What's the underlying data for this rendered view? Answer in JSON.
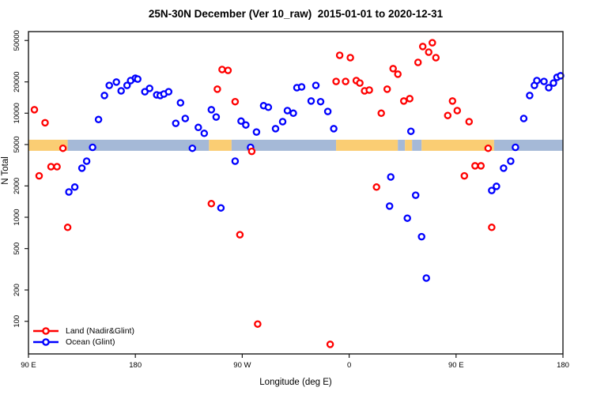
{
  "chart_data": {
    "type": "scatter",
    "title": "25N-30N December (Ver 10_raw)  2015-01-01 to 2020-12-31",
    "xlabel": "Longitude (deg E)",
    "ylabel": "N Total",
    "x_axis": {
      "min": 90,
      "max": 540,
      "ticks": [
        {
          "value": 90,
          "label": "90 E"
        },
        {
          "value": 180,
          "label": "180"
        },
        {
          "value": 270,
          "label": "90 W"
        },
        {
          "value": 360,
          "label": "0"
        },
        {
          "value": 450,
          "label": "90 E"
        },
        {
          "value": 540,
          "label": "180"
        }
      ]
    },
    "y_axis": {
      "scale": "log",
      "min": 50,
      "max": 60000,
      "ticks": [
        {
          "value": 100,
          "label": "100"
        },
        {
          "value": 200,
          "label": "200"
        },
        {
          "value": 500,
          "label": "500"
        },
        {
          "value": 1000,
          "label": "1000"
        },
        {
          "value": 2000,
          "label": "2000"
        },
        {
          "value": 5000,
          "label": "5000"
        },
        {
          "value": 10000,
          "label": "10000"
        },
        {
          "value": 20000,
          "label": "20000"
        },
        {
          "value": 50000,
          "label": "50000"
        }
      ]
    },
    "surface_band": {
      "description": "land/ocean strip along 25N-30N drawn at N ~5000",
      "value_top": 5560,
      "value_bottom": 4350,
      "land_color": "#FACD73",
      "ocean_color": "#A5B9D7",
      "segments": [
        {
          "from": 90,
          "to": 123,
          "type": "land"
        },
        {
          "from": 123,
          "to": 242,
          "type": "ocean"
        },
        {
          "from": 242,
          "to": 261,
          "type": "land"
        },
        {
          "from": 261,
          "to": 349,
          "type": "ocean"
        },
        {
          "from": 349,
          "to": 401,
          "type": "land"
        },
        {
          "from": 401,
          "to": 407,
          "type": "ocean"
        },
        {
          "from": 407,
          "to": 413,
          "type": "land"
        },
        {
          "from": 413,
          "to": 421,
          "type": "ocean"
        },
        {
          "from": 421,
          "to": 482,
          "type": "land"
        },
        {
          "from": 482,
          "to": 540,
          "type": "ocean"
        }
      ]
    },
    "series": [
      {
        "name": "Ocean (Glint)",
        "color": "#0000FF",
        "points": [
          [
            149,
            8700
          ],
          [
            154,
            14800
          ],
          [
            158,
            18500
          ],
          [
            164,
            19900
          ],
          [
            168,
            16400
          ],
          [
            173,
            18500
          ],
          [
            176,
            20600
          ],
          [
            180,
            21700
          ],
          [
            182,
            21300
          ],
          [
            188,
            16100
          ],
          [
            192,
            17300
          ],
          [
            198,
            15000
          ],
          [
            201,
            14800
          ],
          [
            204,
            15300
          ],
          [
            208,
            16100
          ],
          [
            214,
            8000
          ],
          [
            218,
            12600
          ],
          [
            222,
            8900
          ],
          [
            233,
            7300
          ],
          [
            238,
            6400
          ],
          [
            244,
            10800
          ],
          [
            248,
            9200
          ],
          [
            269,
            8400
          ],
          [
            273,
            7700
          ],
          [
            282,
            6600
          ],
          [
            288,
            11800
          ],
          [
            292,
            11400
          ],
          [
            298,
            7100
          ],
          [
            304,
            8300
          ],
          [
            308,
            10600
          ],
          [
            313,
            10000
          ],
          [
            316,
            17600
          ],
          [
            320,
            17900
          ],
          [
            328,
            13100
          ],
          [
            332,
            18500
          ],
          [
            336,
            12900
          ],
          [
            342,
            10400
          ],
          [
            347,
            7100
          ],
          [
            395,
            2440
          ],
          [
            394,
            1280
          ],
          [
            409,
            980
          ],
          [
            412,
            6700
          ],
          [
            416,
            1630
          ],
          [
            421,
            650
          ],
          [
            425,
            260
          ],
          [
            480,
            1810
          ],
          [
            484,
            1980
          ],
          [
            490,
            2960
          ],
          [
            496,
            3460
          ],
          [
            507,
            8900
          ],
          [
            512,
            14800
          ],
          [
            516,
            18500
          ],
          [
            518,
            20600
          ],
          [
            524,
            20200
          ],
          [
            528,
            17600
          ],
          [
            532,
            19500
          ],
          [
            535,
            22100
          ],
          [
            538,
            22900
          ],
          [
            144,
            4700
          ],
          [
            228,
            4600
          ],
          [
            277,
            4700
          ],
          [
            500,
            4700
          ],
          [
            264,
            3460
          ],
          [
            252,
            1230
          ],
          [
            135,
            2960
          ],
          [
            139,
            3460
          ],
          [
            124,
            1750
          ],
          [
            129,
            1950
          ]
        ]
      },
      {
        "name": "Land (Nadir&Glint)",
        "color": "#FF0000",
        "points": [
          [
            95,
            10800
          ],
          [
            104,
            8100
          ],
          [
            119,
            4600
          ],
          [
            109,
            3060
          ],
          [
            114,
            3060
          ],
          [
            99,
            2500
          ],
          [
            123,
            800
          ],
          [
            249,
            17000
          ],
          [
            253,
            26300
          ],
          [
            258,
            25800
          ],
          [
            264,
            12900
          ],
          [
            244,
            1350
          ],
          [
            268,
            680
          ],
          [
            278,
            4300
          ],
          [
            283,
            94
          ],
          [
            344,
            60
          ],
          [
            352,
            36000
          ],
          [
            361,
            34200
          ],
          [
            349,
            20200
          ],
          [
            357,
            20200
          ],
          [
            366,
            20600
          ],
          [
            369,
            19500
          ],
          [
            373,
            16400
          ],
          [
            377,
            16700
          ],
          [
            383,
            1950
          ],
          [
            387,
            10000
          ],
          [
            392,
            17000
          ],
          [
            397,
            26800
          ],
          [
            401,
            23700
          ],
          [
            406,
            13100
          ],
          [
            411,
            13800
          ],
          [
            418,
            30800
          ],
          [
            422,
            43700
          ],
          [
            427,
            38600
          ],
          [
            430,
            47600
          ],
          [
            433,
            34200
          ],
          [
            443,
            9500
          ],
          [
            447,
            13100
          ],
          [
            451,
            10600
          ],
          [
            457,
            2500
          ],
          [
            461,
            8300
          ],
          [
            466,
            3120
          ],
          [
            471,
            3120
          ],
          [
            477,
            4600
          ],
          [
            480,
            800
          ]
        ]
      }
    ],
    "legend": {
      "position": "bottom-left",
      "entries": [
        "Land (Nadir&Glint)",
        "Ocean (Glint)"
      ]
    }
  }
}
